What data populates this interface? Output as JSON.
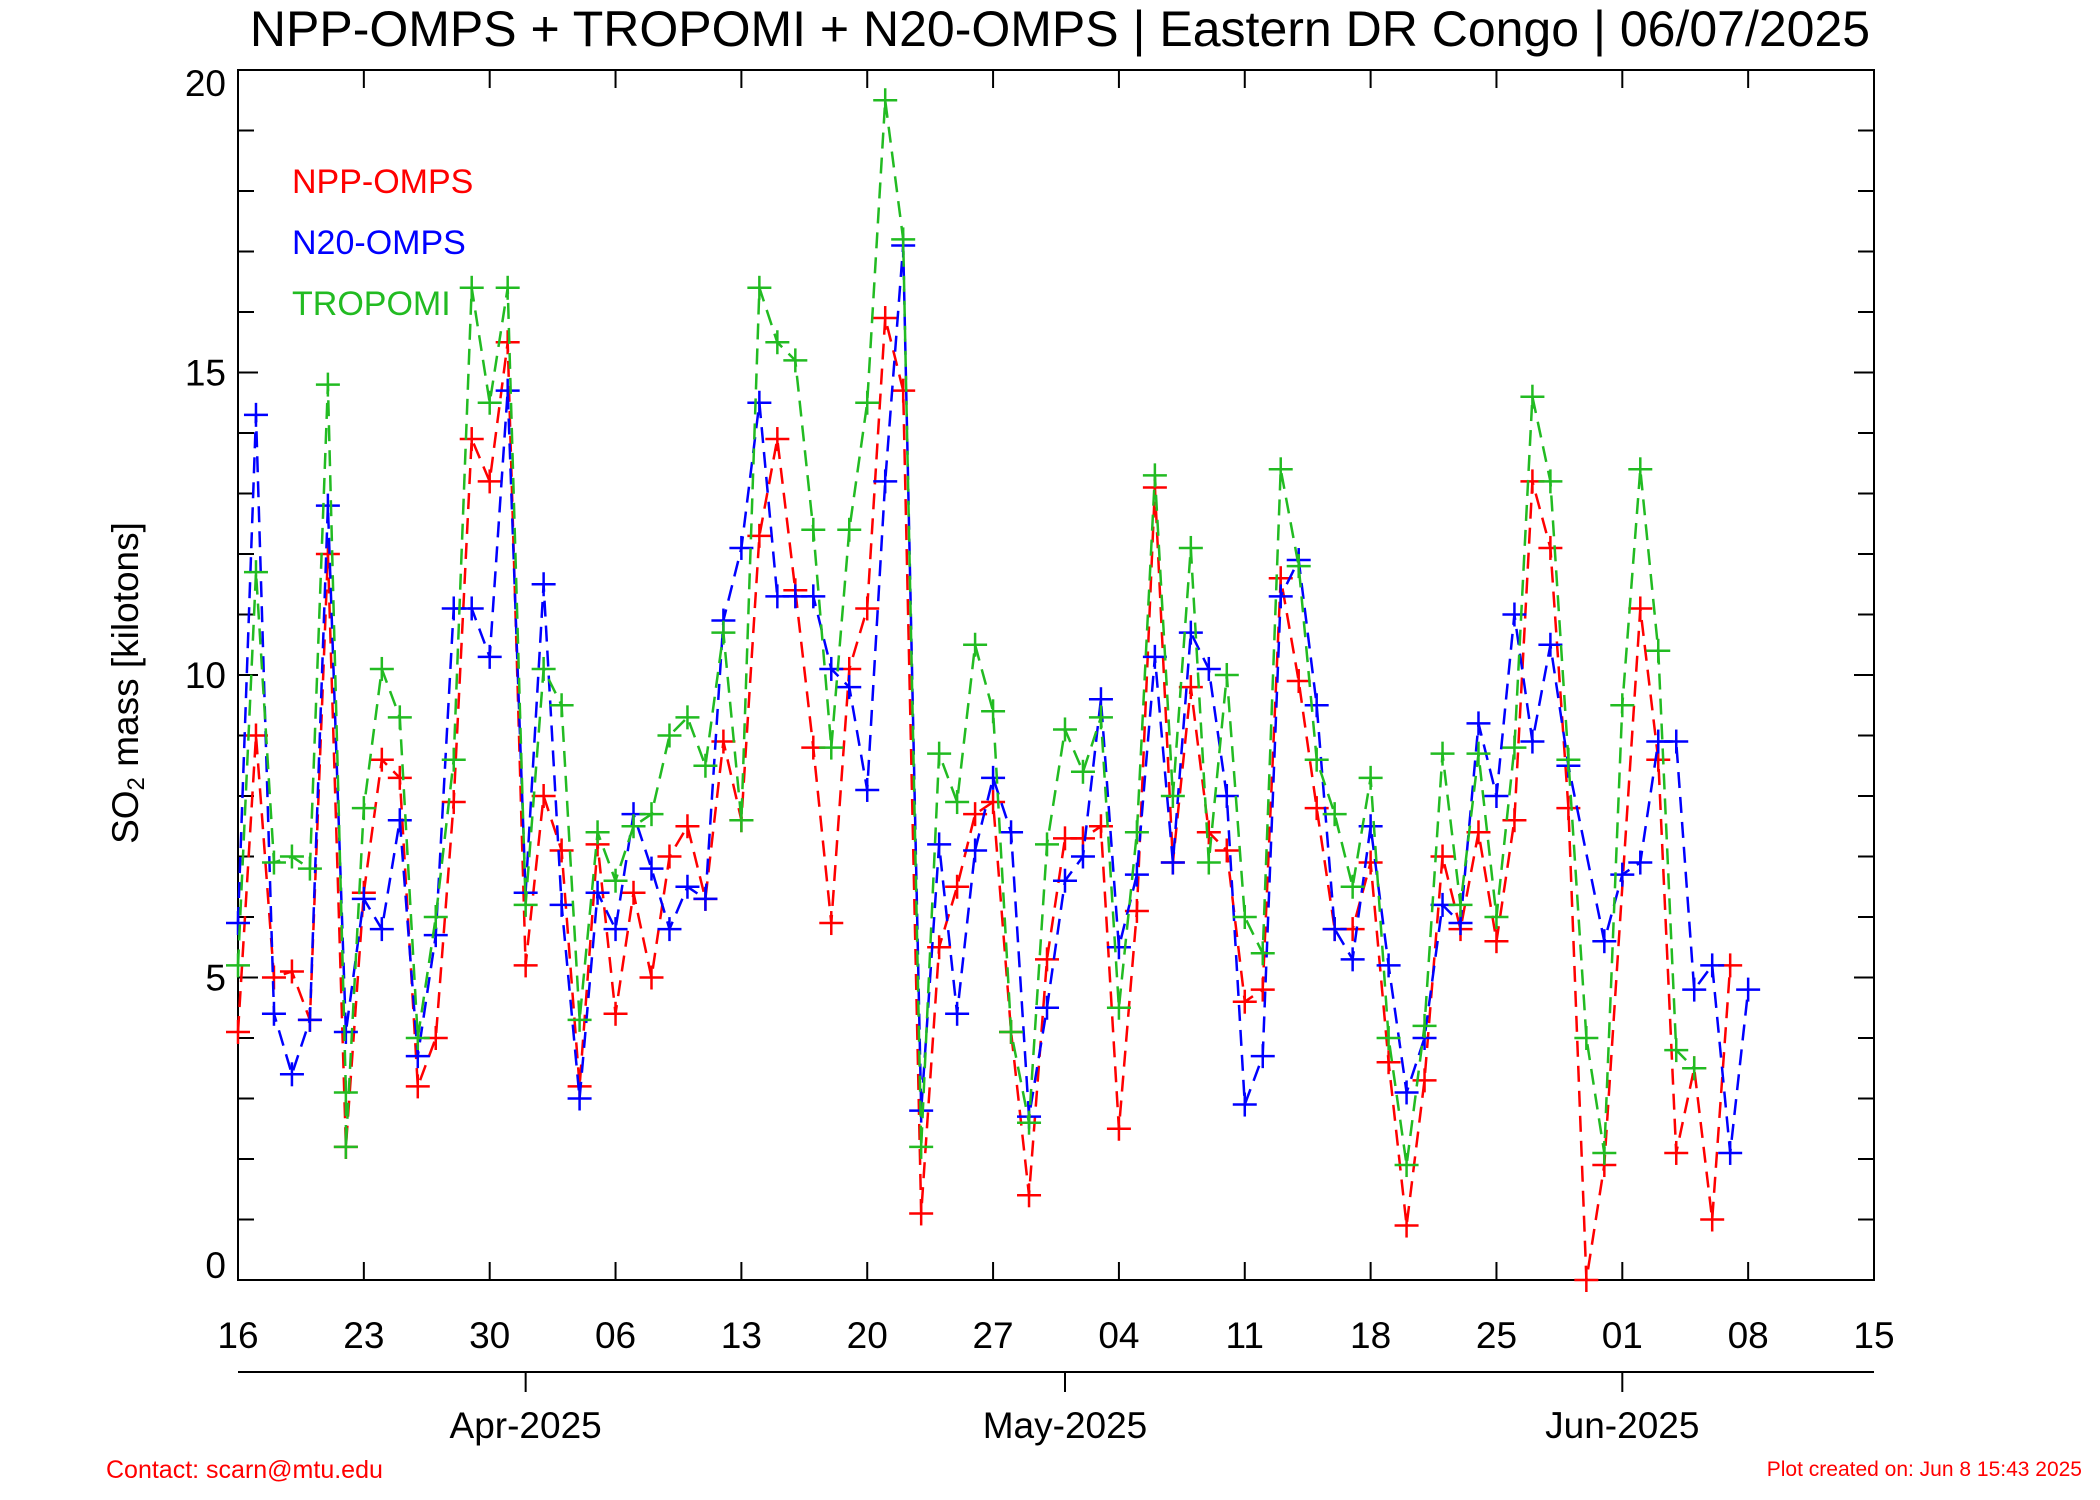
{
  "title": "NPP-OMPS + TROPOMI + N20-OMPS | Eastern DR Congo | 06/07/2025",
  "ylabel_main": "SO",
  "ylabel_sub": "2",
  "ylabel_rest": " mass [kilotons]",
  "footer": {
    "contact": "Contact: scarn@mtu.edu",
    "created": "Plot created on: Jun  8 15:43 2025"
  },
  "colors": {
    "NPP-OMPS": "#ff0000",
    "N20-OMPS": "#0000ff",
    "TROPOMI": "#22bb22",
    "axis": "#000000",
    "background": "#ffffff"
  },
  "chart_data": {
    "type": "scatter",
    "marker": "plus",
    "line_style": "dashed",
    "x_unit": "date",
    "xlim": [
      "2025-03-16",
      "2025-06-15"
    ],
    "ylim": [
      0,
      20
    ],
    "y_ticks": [
      0,
      5,
      10,
      15,
      20
    ],
    "y_minor_step": 1,
    "x_tick_labels": [
      "16",
      "23",
      "30",
      "06",
      "13",
      "20",
      "27",
      "04",
      "11",
      "18",
      "25",
      "01",
      "08",
      "15"
    ],
    "x_tick_dates": [
      "2025-03-16",
      "2025-03-23",
      "2025-03-30",
      "2025-04-06",
      "2025-04-13",
      "2025-04-20",
      "2025-04-27",
      "2025-05-04",
      "2025-05-11",
      "2025-05-18",
      "2025-05-25",
      "2025-06-01",
      "2025-06-08",
      "2025-06-15"
    ],
    "month_labels": [
      {
        "label": "Apr-2025",
        "date": "2025-04-01"
      },
      {
        "label": "May-2025",
        "date": "2025-05-01"
      },
      {
        "label": "Jun-2025",
        "date": "2025-06-01"
      }
    ],
    "legend_position": "top-left",
    "grid": false,
    "series": [
      {
        "name": "NPP-OMPS",
        "points": [
          [
            "2025-03-16",
            4.1
          ],
          [
            "2025-03-17",
            9.0
          ],
          [
            "2025-03-18",
            5.0
          ],
          [
            "2025-03-19",
            5.1
          ],
          [
            "2025-03-20",
            4.3
          ],
          [
            "2025-03-21",
            12.0
          ],
          [
            "2025-03-22",
            2.2
          ],
          [
            "2025-03-23",
            6.4
          ],
          [
            "2025-03-24",
            8.6
          ],
          [
            "2025-03-25",
            8.3
          ],
          [
            "2025-03-26",
            3.2
          ],
          [
            "2025-03-27",
            4.0
          ],
          [
            "2025-03-28",
            7.9
          ],
          [
            "2025-03-29",
            13.9
          ],
          [
            "2025-03-30",
            13.2
          ],
          [
            "2025-03-31",
            15.5
          ],
          [
            "2025-04-01",
            5.2
          ],
          [
            "2025-04-02",
            8.0
          ],
          [
            "2025-04-03",
            7.1
          ],
          [
            "2025-04-04",
            3.2
          ],
          [
            "2025-04-05",
            7.2
          ],
          [
            "2025-04-06",
            4.4
          ],
          [
            "2025-04-07",
            6.4
          ],
          [
            "2025-04-08",
            5.0
          ],
          [
            "2025-04-09",
            7.0
          ],
          [
            "2025-04-10",
            7.5
          ],
          [
            "2025-04-11",
            6.3
          ],
          [
            "2025-04-12",
            8.9
          ],
          [
            "2025-04-13",
            7.6
          ],
          [
            "2025-04-14",
            12.3
          ],
          [
            "2025-04-15",
            13.9
          ],
          [
            "2025-04-16",
            11.4
          ],
          [
            "2025-04-17",
            8.8
          ],
          [
            "2025-04-18",
            5.9
          ],
          [
            "2025-04-19",
            10.1
          ],
          [
            "2025-04-20",
            11.1
          ],
          [
            "2025-04-21",
            15.9
          ],
          [
            "2025-04-22",
            14.7
          ],
          [
            "2025-04-23",
            1.1
          ],
          [
            "2025-04-24",
            5.5
          ],
          [
            "2025-04-25",
            6.5
          ],
          [
            "2025-04-26",
            7.7
          ],
          [
            "2025-04-27",
            7.9
          ],
          [
            "2025-04-28",
            4.1
          ],
          [
            "2025-04-29",
            1.4
          ],
          [
            "2025-04-30",
            5.3
          ],
          [
            "2025-05-01",
            7.3
          ],
          [
            "2025-05-02",
            7.3
          ],
          [
            "2025-05-03",
            7.5
          ],
          [
            "2025-05-04",
            2.5
          ],
          [
            "2025-05-05",
            6.1
          ],
          [
            "2025-05-06",
            13.1
          ],
          [
            "2025-05-07",
            6.9
          ],
          [
            "2025-05-08",
            9.8
          ],
          [
            "2025-05-09",
            7.4
          ],
          [
            "2025-05-10",
            7.1
          ],
          [
            "2025-05-11",
            4.6
          ],
          [
            "2025-05-12",
            4.8
          ],
          [
            "2025-05-13",
            11.6
          ],
          [
            "2025-05-14",
            9.9
          ],
          [
            "2025-05-15",
            7.8
          ],
          [
            "2025-05-16",
            5.8
          ],
          [
            "2025-05-17",
            5.8
          ],
          [
            "2025-05-18",
            6.9
          ],
          [
            "2025-05-19",
            3.6
          ],
          [
            "2025-05-20",
            0.9
          ],
          [
            "2025-05-21",
            3.3
          ],
          [
            "2025-05-22",
            7.0
          ],
          [
            "2025-05-23",
            5.8
          ],
          [
            "2025-05-24",
            7.4
          ],
          [
            "2025-05-25",
            5.6
          ],
          [
            "2025-05-26",
            7.6
          ],
          [
            "2025-05-27",
            13.2
          ],
          [
            "2025-05-28",
            12.1
          ],
          [
            "2025-05-29",
            7.8
          ],
          [
            "2025-05-30",
            0.0
          ],
          [
            "2025-05-31",
            1.9
          ],
          [
            "2025-06-02",
            11.1
          ],
          [
            "2025-06-03",
            8.6
          ],
          [
            "2025-06-04",
            2.1
          ],
          [
            "2025-06-05",
            3.5
          ],
          [
            "2025-06-06",
            1.0
          ],
          [
            "2025-06-07",
            5.2
          ]
        ]
      },
      {
        "name": "N20-OMPS",
        "points": [
          [
            "2025-03-16",
            5.9
          ],
          [
            "2025-03-17",
            14.3
          ],
          [
            "2025-03-18",
            4.4
          ],
          [
            "2025-03-19",
            3.4
          ],
          [
            "2025-03-20",
            4.3
          ],
          [
            "2025-03-21",
            12.8
          ],
          [
            "2025-03-22",
            4.1
          ],
          [
            "2025-03-23",
            6.3
          ],
          [
            "2025-03-24",
            5.8
          ],
          [
            "2025-03-25",
            7.6
          ],
          [
            "2025-03-26",
            3.7
          ],
          [
            "2025-03-27",
            5.7
          ],
          [
            "2025-03-28",
            11.1
          ],
          [
            "2025-03-29",
            11.1
          ],
          [
            "2025-03-30",
            10.3
          ],
          [
            "2025-03-31",
            14.7
          ],
          [
            "2025-04-01",
            6.4
          ],
          [
            "2025-04-02",
            11.5
          ],
          [
            "2025-04-03",
            6.2
          ],
          [
            "2025-04-04",
            3.0
          ],
          [
            "2025-04-05",
            6.4
          ],
          [
            "2025-04-06",
            5.8
          ],
          [
            "2025-04-07",
            7.7
          ],
          [
            "2025-04-08",
            6.8
          ],
          [
            "2025-04-09",
            5.8
          ],
          [
            "2025-04-10",
            6.5
          ],
          [
            "2025-04-11",
            6.3
          ],
          [
            "2025-04-12",
            10.9
          ],
          [
            "2025-04-13",
            12.1
          ],
          [
            "2025-04-14",
            14.5
          ],
          [
            "2025-04-15",
            11.3
          ],
          [
            "2025-04-16",
            11.3
          ],
          [
            "2025-04-17",
            11.3
          ],
          [
            "2025-04-18",
            10.1
          ],
          [
            "2025-04-19",
            9.8
          ],
          [
            "2025-04-20",
            8.1
          ],
          [
            "2025-04-21",
            13.2
          ],
          [
            "2025-04-22",
            17.1
          ],
          [
            "2025-04-23",
            2.8
          ],
          [
            "2025-04-24",
            7.2
          ],
          [
            "2025-04-25",
            4.4
          ],
          [
            "2025-04-26",
            7.1
          ],
          [
            "2025-04-27",
            8.3
          ],
          [
            "2025-04-28",
            7.4
          ],
          [
            "2025-04-29",
            2.7
          ],
          [
            "2025-04-30",
            4.5
          ],
          [
            "2025-05-01",
            6.6
          ],
          [
            "2025-05-02",
            7.0
          ],
          [
            "2025-05-03",
            9.6
          ],
          [
            "2025-05-04",
            5.5
          ],
          [
            "2025-05-05",
            6.7
          ],
          [
            "2025-05-06",
            10.3
          ],
          [
            "2025-05-07",
            6.9
          ],
          [
            "2025-05-08",
            10.7
          ],
          [
            "2025-05-09",
            10.1
          ],
          [
            "2025-05-10",
            8.0
          ],
          [
            "2025-05-11",
            2.9
          ],
          [
            "2025-05-12",
            3.7
          ],
          [
            "2025-05-13",
            11.3
          ],
          [
            "2025-05-14",
            11.9
          ],
          [
            "2025-05-15",
            9.5
          ],
          [
            "2025-05-16",
            5.8
          ],
          [
            "2025-05-17",
            5.3
          ],
          [
            "2025-05-18",
            7.5
          ],
          [
            "2025-05-19",
            5.2
          ],
          [
            "2025-05-20",
            3.1
          ],
          [
            "2025-05-21",
            4.0
          ],
          [
            "2025-05-22",
            6.2
          ],
          [
            "2025-05-23",
            5.9
          ],
          [
            "2025-05-24",
            9.2
          ],
          [
            "2025-05-25",
            8.0
          ],
          [
            "2025-05-26",
            11.0
          ],
          [
            "2025-05-27",
            8.9
          ],
          [
            "2025-05-28",
            10.5
          ],
          [
            "2025-05-29",
            8.5
          ],
          [
            "2025-05-31",
            5.6
          ],
          [
            "2025-06-01",
            6.7
          ],
          [
            "2025-06-02",
            6.9
          ],
          [
            "2025-06-03",
            8.9
          ],
          [
            "2025-06-04",
            8.9
          ],
          [
            "2025-06-05",
            4.8
          ],
          [
            "2025-06-06",
            5.2
          ],
          [
            "2025-06-07",
            2.1
          ],
          [
            "2025-06-08",
            4.8
          ]
        ]
      },
      {
        "name": "TROPOMI",
        "points": [
          [
            "2025-03-16",
            5.2
          ],
          [
            "2025-03-17",
            11.7
          ],
          [
            "2025-03-18",
            6.9
          ],
          [
            "2025-03-19",
            7.0
          ],
          [
            "2025-03-20",
            6.8
          ],
          [
            "2025-03-21",
            14.8
          ],
          [
            "2025-03-22",
            3.1
          ],
          [
            "2025-03-22",
            2.2
          ],
          [
            "2025-03-23",
            7.8
          ],
          [
            "2025-03-24",
            10.1
          ],
          [
            "2025-03-25",
            9.3
          ],
          [
            "2025-03-26",
            4.0
          ],
          [
            "2025-03-27",
            6.0
          ],
          [
            "2025-03-28",
            8.6
          ],
          [
            "2025-03-29",
            16.4
          ],
          [
            "2025-03-30",
            14.5
          ],
          [
            "2025-03-31",
            16.4
          ],
          [
            "2025-04-01",
            6.2
          ],
          [
            "2025-04-02",
            10.1
          ],
          [
            "2025-04-03",
            9.5
          ],
          [
            "2025-04-04",
            4.3
          ],
          [
            "2025-04-05",
            7.4
          ],
          [
            "2025-04-06",
            6.6
          ],
          [
            "2025-04-07",
            7.5
          ],
          [
            "2025-04-08",
            7.7
          ],
          [
            "2025-04-09",
            9.0
          ],
          [
            "2025-04-10",
            9.3
          ],
          [
            "2025-04-11",
            8.5
          ],
          [
            "2025-04-12",
            10.7
          ],
          [
            "2025-04-13",
            7.6
          ],
          [
            "2025-04-14",
            16.4
          ],
          [
            "2025-04-15",
            15.5
          ],
          [
            "2025-04-16",
            15.2
          ],
          [
            "2025-04-17",
            12.4
          ],
          [
            "2025-04-18",
            8.8
          ],
          [
            "2025-04-19",
            12.4
          ],
          [
            "2025-04-20",
            14.5
          ],
          [
            "2025-04-21",
            19.5
          ],
          [
            "2025-04-22",
            17.2
          ],
          [
            "2025-04-23",
            2.2
          ],
          [
            "2025-04-24",
            8.7
          ],
          [
            "2025-04-25",
            7.9
          ],
          [
            "2025-04-26",
            10.5
          ],
          [
            "2025-04-27",
            9.4
          ],
          [
            "2025-04-28",
            4.1
          ],
          [
            "2025-04-29",
            2.6
          ],
          [
            "2025-04-30",
            7.2
          ],
          [
            "2025-05-01",
            9.1
          ],
          [
            "2025-05-02",
            8.4
          ],
          [
            "2025-05-03",
            9.3
          ],
          [
            "2025-05-04",
            4.5
          ],
          [
            "2025-05-05",
            7.4
          ],
          [
            "2025-05-06",
            13.3
          ],
          [
            "2025-05-07",
            8.0
          ],
          [
            "2025-05-08",
            12.1
          ],
          [
            "2025-05-09",
            6.9
          ],
          [
            "2025-05-10",
            10.0
          ],
          [
            "2025-05-11",
            6.0
          ],
          [
            "2025-05-12",
            5.4
          ],
          [
            "2025-05-13",
            13.4
          ],
          [
            "2025-05-14",
            11.8
          ],
          [
            "2025-05-15",
            8.6
          ],
          [
            "2025-05-16",
            7.7
          ],
          [
            "2025-05-17",
            6.5
          ],
          [
            "2025-05-18",
            8.3
          ],
          [
            "2025-05-19",
            4.0
          ],
          [
            "2025-05-20",
            1.9
          ],
          [
            "2025-05-21",
            4.2
          ],
          [
            "2025-05-22",
            8.7
          ],
          [
            "2025-05-23",
            6.2
          ],
          [
            "2025-05-24",
            8.7
          ],
          [
            "2025-05-25",
            6.0
          ],
          [
            "2025-05-26",
            8.8
          ],
          [
            "2025-05-27",
            14.6
          ],
          [
            "2025-05-28",
            13.2
          ],
          [
            "2025-05-29",
            8.6
          ],
          [
            "2025-05-30",
            4.0
          ],
          [
            "2025-05-31",
            2.1
          ],
          [
            "2025-06-01",
            9.5
          ],
          [
            "2025-06-02",
            13.4
          ],
          [
            "2025-06-03",
            10.4
          ],
          [
            "2025-06-04",
            3.8
          ],
          [
            "2025-06-05",
            3.5
          ]
        ]
      }
    ]
  }
}
